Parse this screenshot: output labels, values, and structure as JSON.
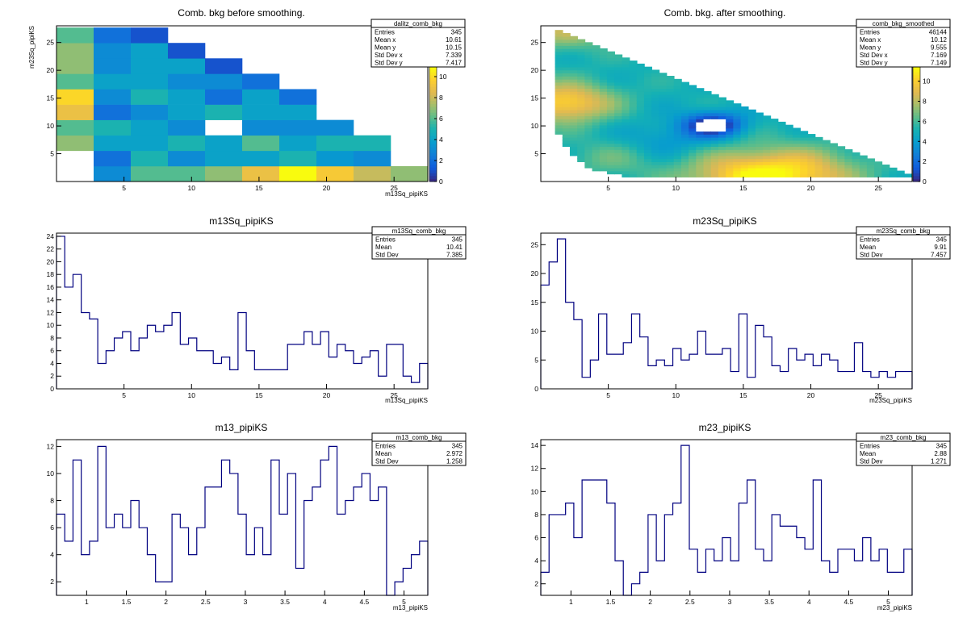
{
  "chart_data": [
    {
      "type": "heatmap",
      "id": "p1",
      "title": "Comb. bkg before smoothing.",
      "xlabel": "m13Sq_pipiKS",
      "ylabel": "m23Sq_pipiKS",
      "xlim": [
        0,
        27.5
      ],
      "ylim": [
        0,
        28
      ],
      "xticks": [
        5,
        10,
        15,
        20,
        25
      ],
      "yticks": [
        5,
        10,
        15,
        20,
        25
      ],
      "stats": {
        "name": "dalitz_comb_bkg",
        "rows": [
          [
            "Entries",
            "345"
          ],
          [
            "Mean x",
            "10.61"
          ],
          [
            "Mean y",
            "10.15"
          ],
          [
            "Std Dev x",
            "7.339"
          ],
          [
            "Std Dev y",
            "7.417"
          ]
        ]
      },
      "zticks": [
        0,
        2,
        4,
        6,
        8,
        10
      ],
      "zmax": 11,
      "nx": 10,
      "ny": 10,
      "cells": [
        [
          -1,
          3,
          6,
          6,
          7,
          9,
          11,
          9.5,
          8,
          7
        ],
        [
          -1,
          2,
          5,
          3,
          4,
          4,
          5,
          3.5,
          3,
          -1
        ],
        [
          7,
          4,
          4,
          5,
          4,
          6,
          4,
          5,
          5,
          -1
        ],
        [
          6,
          5,
          4,
          3,
          -1,
          3,
          3,
          3,
          -1,
          -1
        ],
        [
          9,
          2,
          3,
          4,
          5,
          4,
          4,
          -1,
          -1,
          -1
        ],
        [
          10,
          3,
          5,
          4,
          2,
          4,
          2,
          -1,
          -1,
          -1
        ],
        [
          6,
          4,
          4,
          3,
          3,
          2,
          -1,
          -1,
          -1,
          -1
        ],
        [
          7,
          3,
          4,
          4,
          1,
          -1,
          -1,
          -1,
          -1,
          -1
        ],
        [
          7,
          3,
          4,
          1,
          -1,
          -1,
          -1,
          -1,
          -1,
          -1
        ],
        [
          6,
          2,
          1,
          -1,
          -1,
          -1,
          -1,
          -1,
          -1,
          -1
        ]
      ]
    },
    {
      "type": "heatmap",
      "id": "p2",
      "title": "Comb. bkg. after smoothing.",
      "xlabel": "",
      "ylabel": "",
      "xlim": [
        0,
        27.5
      ],
      "ylim": [
        0,
        28
      ],
      "xticks": [
        5,
        10,
        15,
        20,
        25
      ],
      "yticks": [
        5,
        10,
        15,
        20,
        25
      ],
      "stats": {
        "name": "comb_bkg_smoothed",
        "rows": [
          [
            "Entries",
            "46144"
          ],
          [
            "Mean x",
            "10.12"
          ],
          [
            "Mean y",
            "9.555"
          ],
          [
            "Std Dev x",
            "7.169"
          ],
          [
            "Std Dev y",
            "7.149"
          ]
        ]
      },
      "zticks": [
        0,
        2,
        4,
        6,
        8,
        10
      ],
      "zmax": 11.5,
      "blobs": [
        {
          "x": 1.5,
          "y": 14,
          "amp": 5.5,
          "s": 2.5
        },
        {
          "x": 15.5,
          "y": 0.5,
          "amp": 6,
          "s": 3.5
        },
        {
          "x": 20,
          "y": 1.5,
          "amp": 2.5,
          "s": 3
        },
        {
          "x": 12.5,
          "y": 10,
          "amp": -5.5,
          "s": 1.6
        },
        {
          "x": 1.5,
          "y": 27,
          "amp": 3,
          "s": 2.5
        },
        {
          "x": 5,
          "y": 4,
          "amp": 1.5,
          "s": 2.5
        },
        {
          "x": 9,
          "y": 7,
          "amp": -1.5,
          "s": 2.5
        }
      ],
      "base": 5
    },
    {
      "type": "histogram",
      "id": "p3",
      "title": "m13Sq_pipiKS",
      "xlabel": "m13Sq_pipiKS",
      "xlim": [
        0,
        27.5
      ],
      "ylim": [
        0,
        24.5
      ],
      "xticks": [
        5,
        10,
        15,
        20,
        25
      ],
      "yticks": [
        0,
        2,
        4,
        6,
        8,
        10,
        12,
        14,
        16,
        18,
        20,
        22,
        24
      ],
      "stats": {
        "name": "m13Sq_comb_bkg",
        "rows": [
          [
            "Entries",
            "345"
          ],
          [
            "Mean",
            "10.41"
          ],
          [
            "Std Dev",
            "7.385"
          ]
        ]
      },
      "values": [
        24,
        16,
        18,
        12,
        11,
        4,
        6,
        8,
        9,
        6,
        8,
        10,
        9,
        10,
        12,
        7,
        8,
        6,
        6,
        4,
        5,
        3,
        12,
        6,
        3,
        3,
        3,
        3,
        7,
        7,
        9,
        7,
        9,
        5,
        7,
        6,
        4,
        5,
        6,
        2,
        7,
        7,
        2,
        1,
        4
      ]
    },
    {
      "type": "histogram",
      "id": "p4",
      "title": "m23Sq_pipiKS",
      "xlabel": "m23Sq_pipiKS",
      "xlim": [
        0,
        27.5
      ],
      "ylim": [
        0,
        27
      ],
      "xticks": [
        5,
        10,
        15,
        20,
        25
      ],
      "yticks": [
        0,
        5,
        10,
        15,
        20,
        25
      ],
      "stats": {
        "name": "m23Sq_comb_bkg",
        "rows": [
          [
            "Entries",
            "345"
          ],
          [
            "Mean",
            "9.91"
          ],
          [
            "Std Dev",
            "7.457"
          ]
        ]
      },
      "values": [
        18,
        22,
        26,
        15,
        12,
        2,
        5,
        13,
        6,
        6,
        8,
        13,
        9,
        4,
        5,
        4,
        7,
        5,
        6,
        10,
        6,
        6,
        7,
        3,
        13,
        2,
        11,
        9,
        4,
        3,
        7,
        5,
        6,
        4,
        6,
        5,
        3,
        3,
        8,
        3,
        2,
        3,
        2,
        3,
        3
      ]
    },
    {
      "type": "histogram",
      "id": "p5",
      "title": "m13_pipiKS",
      "xlabel": "m13_pipiKS",
      "xlim": [
        0.62,
        5.3
      ],
      "ylim": [
        1,
        12.5
      ],
      "xticks": [
        1,
        1.5,
        2,
        2.5,
        3,
        3.5,
        4,
        4.5,
        5
      ],
      "yticks": [
        2,
        4,
        6,
        8,
        10,
        12
      ],
      "stats": {
        "name": "m13_comb_bkg",
        "rows": [
          [
            "Entries",
            "345"
          ],
          [
            "Mean",
            "2.972"
          ],
          [
            "Std Dev",
            "1.258"
          ]
        ]
      },
      "values": [
        7,
        5,
        11,
        4,
        5,
        12,
        6,
        7,
        6,
        8,
        6,
        4,
        2,
        2,
        7,
        6,
        4,
        6,
        9,
        9,
        11,
        10,
        7,
        4,
        6,
        4,
        11,
        7,
        10,
        3,
        8,
        9,
        11,
        12,
        7,
        8,
        9,
        10,
        8,
        9,
        1,
        2,
        3,
        4,
        5
      ]
    },
    {
      "type": "histogram",
      "id": "p6",
      "title": "m23_pipiKS",
      "xlabel": "m23_pipiKS",
      "xlim": [
        0.62,
        5.3
      ],
      "ylim": [
        1,
        14.5
      ],
      "xticks": [
        1,
        1.5,
        2,
        2.5,
        3,
        3.5,
        4,
        4.5,
        5
      ],
      "yticks": [
        2,
        4,
        6,
        8,
        10,
        12,
        14
      ],
      "stats": {
        "name": "m23_comb_bkg",
        "rows": [
          [
            "Entries",
            "345"
          ],
          [
            "Mean",
            "2.88"
          ],
          [
            "Std Dev",
            "1.271"
          ]
        ]
      },
      "values": [
        3,
        8,
        8,
        9,
        6,
        11,
        11,
        11,
        9,
        4,
        1,
        2,
        3,
        8,
        4,
        8,
        9,
        14,
        5,
        3,
        5,
        4,
        6,
        4,
        9,
        11,
        5,
        4,
        8,
        7,
        7,
        6,
        5,
        11,
        4,
        3,
        5,
        5,
        4,
        6,
        4,
        5,
        3,
        3,
        5
      ]
    }
  ]
}
